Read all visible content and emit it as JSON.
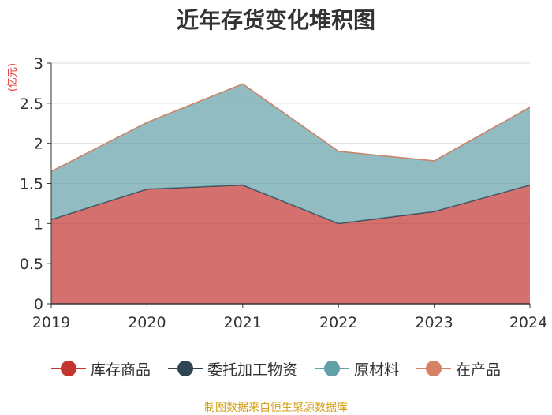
{
  "title": "近年存货变化堆积图",
  "source": "制图数据来自恒生聚源数据库",
  "colors": {
    "库存商品": "#c23531",
    "委托加工物资": "#2f4554",
    "原材料": "#61a0a8",
    "在产品": "#d48265"
  },
  "chart_data": {
    "type": "area",
    "stacked": true,
    "ylabel": "(亿元)",
    "xlabel": "",
    "ylim": [
      0,
      3
    ],
    "yticks": [
      "0",
      "0.5",
      "1",
      "1.5",
      "2",
      "2.5",
      "3"
    ],
    "categories": [
      "2019",
      "2020",
      "2021",
      "2022",
      "2023",
      "2024"
    ],
    "grid": true,
    "legend_position": "bottom",
    "series": [
      {
        "name": "库存商品",
        "values": [
          1.05,
          1.43,
          1.48,
          1.0,
          1.15,
          1.48
        ]
      },
      {
        "name": "委托加工物资",
        "values": [
          0,
          0,
          0,
          0,
          0,
          0
        ]
      },
      {
        "name": "原材料",
        "values": [
          0.6,
          0.83,
          1.26,
          0.9,
          0.63,
          0.97
        ]
      },
      {
        "name": "在产品",
        "values": [
          0,
          0,
          0,
          0,
          0,
          0
        ]
      }
    ]
  }
}
